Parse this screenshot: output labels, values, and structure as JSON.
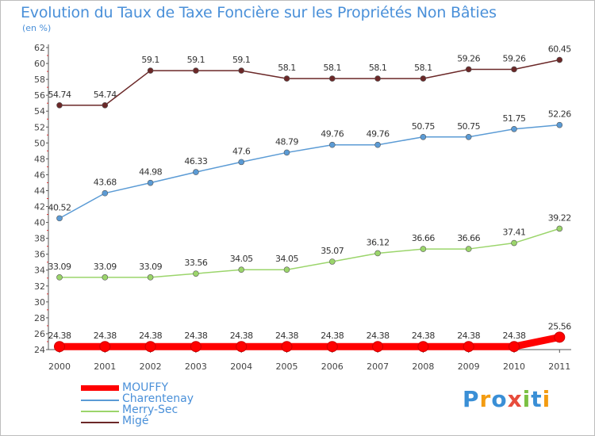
{
  "chart_data": {
    "type": "line",
    "title": "Evolution du Taux de Taxe Foncière sur les Propriétés Non Bâties",
    "subtitle": "(en %)",
    "xlabel": "",
    "ylabel": "",
    "x": [
      "2000",
      "2001",
      "2002",
      "2003",
      "2004",
      "2005",
      "2006",
      "2007",
      "2008",
      "2009",
      "2010",
      "2011"
    ],
    "ylim": [
      24,
      62
    ],
    "yticks": [
      24,
      26,
      28,
      30,
      32,
      34,
      36,
      38,
      40,
      42,
      44,
      46,
      48,
      50,
      52,
      54,
      56,
      58,
      60,
      62
    ],
    "grid": false,
    "legend_position": "bottom-left",
    "series": [
      {
        "name": "Migé",
        "color": "#6b2828",
        "values": [
          54.74,
          54.74,
          59.1,
          59.1,
          59.1,
          58.1,
          58.1,
          58.1,
          58.1,
          59.26,
          59.26,
          60.45
        ],
        "labels": [
          "54.74",
          "54.74",
          "59.1",
          "59.1",
          "59.1",
          "58.1",
          "58.1",
          "58.1",
          "58.1",
          "59.26",
          "59.26",
          "60.45"
        ]
      },
      {
        "name": "Charentenay",
        "color": "#5b9bd5",
        "values": [
          40.52,
          43.68,
          44.98,
          46.33,
          47.6,
          48.79,
          49.76,
          49.76,
          50.75,
          50.75,
          51.75,
          52.26
        ],
        "labels": [
          "40.52",
          "43.68",
          "44.98",
          "46.33",
          "47.6",
          "48.79",
          "49.76",
          "49.76",
          "50.75",
          "50.75",
          "51.75",
          "52.26"
        ]
      },
      {
        "name": "Merry-Sec",
        "color": "#9bd56b",
        "values": [
          33.09,
          33.09,
          33.09,
          33.56,
          34.05,
          34.05,
          35.07,
          36.12,
          36.66,
          36.66,
          37.41,
          39.22
        ],
        "labels": [
          "33.09",
          "33.09",
          "33.09",
          "33.56",
          "34.05",
          "34.05",
          "35.07",
          "36.12",
          "36.66",
          "36.66",
          "37.41",
          "39.22"
        ]
      },
      {
        "name": "MOUFFY",
        "color": "#ff0000",
        "values": [
          24.38,
          24.38,
          24.38,
          24.38,
          24.38,
          24.38,
          24.38,
          24.38,
          24.38,
          24.38,
          24.38,
          25.56
        ],
        "labels": [
          "24.38",
          "24.38",
          "24.38",
          "24.38",
          "24.38",
          "24.38",
          "24.38",
          "24.38",
          "24.38",
          "24.38",
          "24.38",
          "25.56"
        ]
      }
    ],
    "legend": [
      "MOUFFY",
      "Charentenay",
      "Merry-Sec",
      "Migé"
    ]
  },
  "logo": {
    "letters": [
      "P",
      "r",
      "o",
      "x",
      "i",
      "t",
      "i"
    ]
  }
}
